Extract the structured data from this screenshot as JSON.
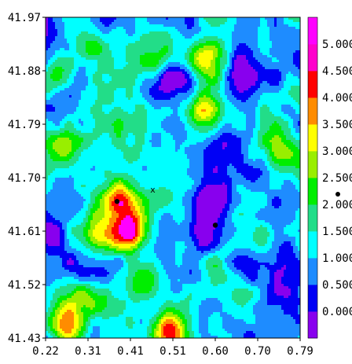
{
  "chart_data": {
    "type": "heatmap",
    "title": "",
    "xlabel": "",
    "ylabel": "",
    "xlim": [
      0.22,
      0.79
    ],
    "ylim": [
      41.43,
      41.97
    ],
    "x_ticks": [
      "0.22",
      "0.31",
      "0.41",
      "0.51",
      "0.60",
      "0.70",
      "0.79"
    ],
    "y_ticks": [
      "41.43",
      "41.52",
      "41.61",
      "41.70",
      "41.79",
      "41.88",
      "41.97"
    ],
    "colorbar": {
      "levels": [
        {
          "label": "0.000",
          "value": 0.0,
          "color": "#8800ee"
        },
        {
          "label": "0.500",
          "value": 0.5,
          "color": "#0000f5"
        },
        {
          "label": "1.000",
          "value": 1.0,
          "color": "#1e8cff"
        },
        {
          "label": "1.500",
          "value": 1.5,
          "color": "#00ffff"
        },
        {
          "label": "2.000",
          "value": 2.0,
          "color": "#22dd88"
        },
        {
          "label": "2.500",
          "value": 2.5,
          "color": "#00ee00"
        },
        {
          "label": "3.000",
          "value": 3.0,
          "color": "#99ee00"
        },
        {
          "label": "3.500",
          "value": 3.5,
          "color": "#ffff00"
        },
        {
          "label": "4.000",
          "value": 4.0,
          "color": "#ff8c00"
        },
        {
          "label": "4.500",
          "value": 4.5,
          "color": "#ff0000"
        },
        {
          "label": "5.000",
          "value": 5.0,
          "color": "#ff00cc"
        }
      ],
      "top_color": "#ff00ff"
    },
    "field_features": [
      {
        "kind": "high",
        "x": 0.41,
        "y": 41.61,
        "value": 5.2
      },
      {
        "kind": "high",
        "x": 0.39,
        "y": 41.66,
        "value": 4.4
      },
      {
        "kind": "high",
        "x": 0.58,
        "y": 41.9,
        "value": 4.6
      },
      {
        "kind": "high",
        "x": 0.57,
        "y": 41.81,
        "value": 3.8
      },
      {
        "kind": "high",
        "x": 0.26,
        "y": 41.75,
        "value": 3.6
      },
      {
        "kind": "high",
        "x": 0.5,
        "y": 41.44,
        "value": 4.6
      },
      {
        "kind": "high",
        "x": 0.26,
        "y": 41.45,
        "value": 4.2
      },
      {
        "kind": "high",
        "x": 0.44,
        "y": 41.53,
        "value": 3.6
      },
      {
        "kind": "high",
        "x": 0.35,
        "y": 41.6,
        "value": 3.3
      },
      {
        "kind": "high",
        "x": 0.24,
        "y": 41.87,
        "value": 3.2
      },
      {
        "kind": "high",
        "x": 0.7,
        "y": 41.6,
        "value": 2.6
      },
      {
        "kind": "high",
        "x": 0.75,
        "y": 41.75,
        "value": 2.6
      },
      {
        "kind": "high",
        "x": 0.32,
        "y": 41.92,
        "value": 2.4
      },
      {
        "kind": "high",
        "x": 0.47,
        "y": 41.9,
        "value": 2.5
      },
      {
        "kind": "high",
        "x": 0.3,
        "y": 41.5,
        "value": 2.6
      },
      {
        "kind": "low",
        "x": 0.59,
        "y": 41.66,
        "value": 0.2
      },
      {
        "kind": "low",
        "x": 0.57,
        "y": 41.61,
        "value": 0.3
      },
      {
        "kind": "low",
        "x": 0.66,
        "y": 41.88,
        "value": 0.4
      },
      {
        "kind": "low",
        "x": 0.51,
        "y": 41.87,
        "value": 0.3
      },
      {
        "kind": "low",
        "x": 0.47,
        "y": 41.85,
        "value": 0.6
      },
      {
        "kind": "low",
        "x": 0.68,
        "y": 41.7,
        "value": 0.6
      },
      {
        "kind": "low",
        "x": 0.76,
        "y": 41.55,
        "value": 0.4
      },
      {
        "kind": "low",
        "x": 0.24,
        "y": 41.6,
        "value": 0.5
      },
      {
        "kind": "low",
        "x": 0.29,
        "y": 41.55,
        "value": 0.8
      },
      {
        "kind": "low",
        "x": 0.73,
        "y": 41.88,
        "value": 0.9
      },
      {
        "kind": "low",
        "x": 0.62,
        "y": 41.76,
        "value": 0.8
      }
    ],
    "markers": [
      {
        "symbol": "x",
        "label": "x",
        "x": 0.46,
        "y": 41.68
      },
      {
        "symbol": "dot",
        "x": 0.38,
        "y": 41.66
      },
      {
        "symbol": "dot",
        "x": 0.6,
        "y": 41.62
      }
    ],
    "outside_dot": {
      "symbol": "dot"
    }
  }
}
